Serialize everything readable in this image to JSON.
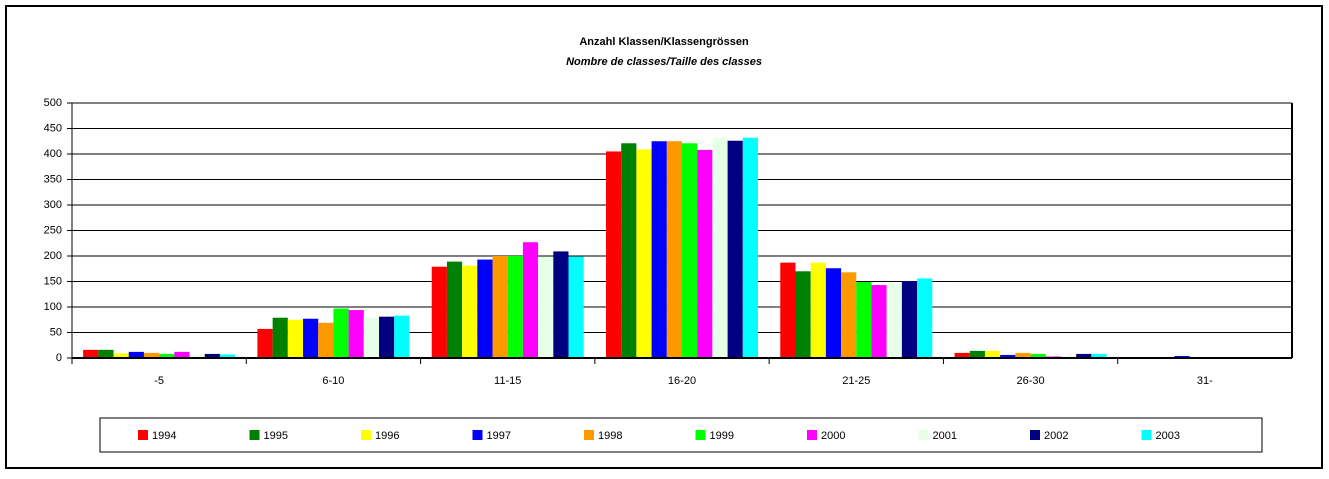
{
  "chart_data": {
    "type": "bar",
    "title": "Anzahl Klassen/Klassengrössen",
    "subtitle": "Nombre de classes/Taille des classes",
    "categories": [
      "-5",
      "6-10",
      "11-15",
      "16-20",
      "21-25",
      "26-30",
      "31-"
    ],
    "series": [
      {
        "name": "1994",
        "color": "#ff0000",
        "values": [
          16,
          57,
          179,
          405,
          187,
          10,
          1
        ]
      },
      {
        "name": "1995",
        "color": "#008000",
        "values": [
          16,
          79,
          189,
          421,
          170,
          14,
          1
        ]
      },
      {
        "name": "1996",
        "color": "#ffff00",
        "values": [
          9,
          75,
          181,
          409,
          187,
          14,
          0
        ]
      },
      {
        "name": "1997",
        "color": "#0000ff",
        "values": [
          12,
          77,
          193,
          425,
          176,
          6,
          4
        ]
      },
      {
        "name": "1998",
        "color": "#ff9900",
        "values": [
          10,
          69,
          200,
          425,
          168,
          10,
          1
        ]
      },
      {
        "name": "1999",
        "color": "#00ff00",
        "values": [
          8,
          97,
          200,
          421,
          149,
          8,
          1
        ]
      },
      {
        "name": "2000",
        "color": "#ff00ff",
        "values": [
          12,
          94,
          227,
          408,
          143,
          3,
          2
        ]
      },
      {
        "name": "2001",
        "color": "#e6ffe6",
        "values": [
          6,
          79,
          199,
          432,
          145,
          4,
          1
        ]
      },
      {
        "name": "2002",
        "color": "#000080",
        "values": [
          8,
          81,
          209,
          426,
          151,
          8,
          0
        ]
      },
      {
        "name": "2003",
        "color": "#00ffff",
        "values": [
          7,
          83,
          199,
          432,
          156,
          8,
          1
        ]
      }
    ],
    "ylim": [
      0,
      500
    ],
    "yticks": [
      0,
      50,
      100,
      150,
      200,
      250,
      300,
      350,
      400,
      450,
      500
    ],
    "grid": true
  }
}
